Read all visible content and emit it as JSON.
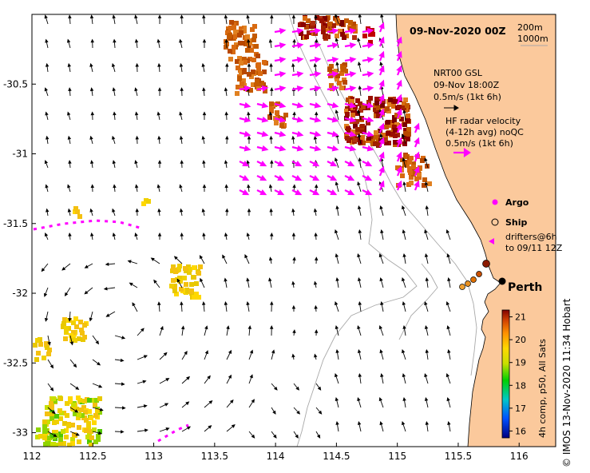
{
  "map": {
    "title": "09-Nov-2020 00Z",
    "credit": "© IMOS 13-Nov-2020 11:34 Hobart",
    "colorbar_label": "4h comp, p50, All Sats",
    "colorbar_ticks": [
      "21",
      "20",
      "19",
      "18",
      "17",
      "16"
    ],
    "colorbar_range": [
      15.7,
      21.3
    ],
    "x_ticks": [
      "112",
      "112.5",
      "113",
      "113.5",
      "114",
      "114.5",
      "115",
      "115.5",
      "116"
    ],
    "y_ticks": [
      "-30.5",
      "-31",
      "-31.5",
      "-32",
      "-32.5",
      "-33"
    ],
    "lon_range": [
      112.0,
      116.3
    ],
    "lat_range": [
      -33.1,
      -30.0
    ],
    "isobath_legend": [
      "200m",
      "1000m"
    ],
    "nrt_legend": {
      "line1": "NRT00 GSL",
      "line2": "09-Nov 18:00Z",
      "line3": "0.5m/s (1kt 6h)"
    },
    "hf_legend": {
      "line1": "HF radar velocity",
      "line2": "(4-12h avg) noQC",
      "line3": "0.5m/s (1kt 6h)"
    },
    "argo_label": "Argo",
    "ship_label": "Ship",
    "drifters_label": [
      "drifters@6h",
      "to 09/11 12Z"
    ],
    "city_label": "Perth",
    "colors": {
      "land": "#fbc99c",
      "hf_arrow": "#ff00ff",
      "isobath": "#a8a8a8",
      "ship_track": "#8b2a00"
    }
  }
}
